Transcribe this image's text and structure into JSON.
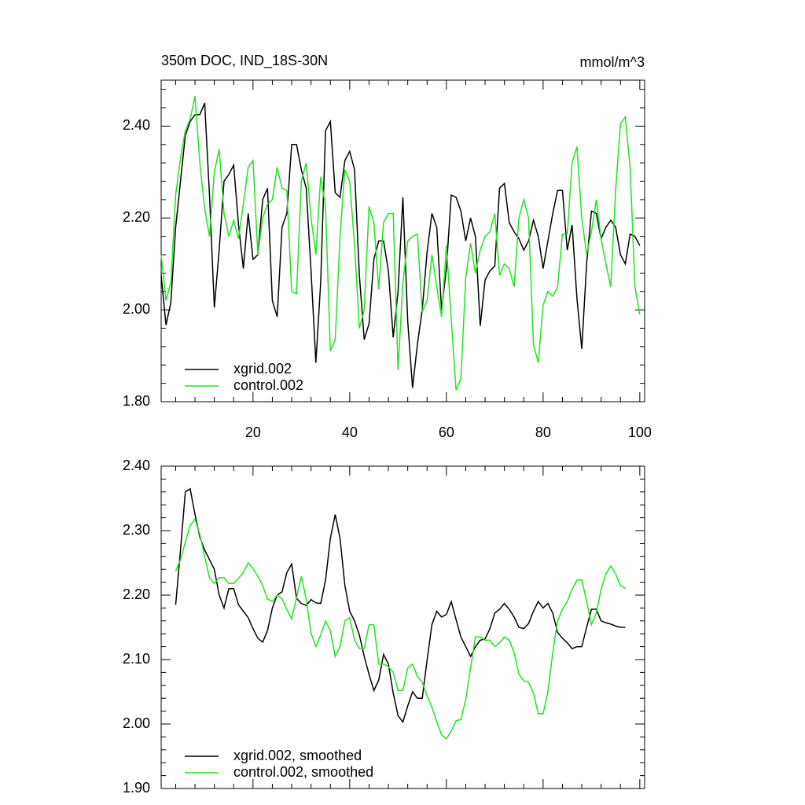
{
  "chart_data": [
    {
      "type": "line",
      "title": "350m DOC, IND_18S-30N",
      "units": "mmol/m^3",
      "x": [
        1,
        2,
        3,
        4,
        5,
        6,
        7,
        8,
        9,
        10,
        11,
        12,
        13,
        14,
        15,
        16,
        17,
        18,
        19,
        20,
        21,
        22,
        23,
        24,
        25,
        26,
        27,
        28,
        29,
        30,
        31,
        32,
        33,
        34,
        35,
        36,
        37,
        38,
        39,
        40,
        41,
        42,
        43,
        44,
        45,
        46,
        47,
        48,
        49,
        50,
        51,
        52,
        53,
        54,
        55,
        56,
        57,
        58,
        59,
        60,
        61,
        62,
        63,
        64,
        65,
        66,
        67,
        68,
        69,
        70,
        71,
        72,
        73,
        74,
        75,
        76,
        77,
        78,
        79,
        80,
        81,
        82,
        83,
        84,
        85,
        86,
        87,
        88,
        89,
        90,
        91,
        92,
        93,
        94,
        95,
        96,
        97,
        98,
        99,
        100
      ],
      "series": [
        {
          "name": "xgrid.002",
          "color": "#000000",
          "values": [
            2.075,
            1.967,
            2.015,
            2.18,
            2.28,
            2.38,
            2.41,
            2.425,
            2.425,
            2.45,
            2.25,
            2.005,
            2.13,
            2.28,
            2.295,
            2.315,
            2.185,
            2.09,
            2.21,
            2.11,
            2.12,
            2.24,
            2.265,
            2.02,
            1.985,
            2.18,
            2.21,
            2.36,
            2.36,
            2.305,
            2.265,
            2.085,
            1.885,
            2.06,
            2.39,
            2.41,
            2.255,
            2.245,
            2.325,
            2.345,
            2.305,
            2.075,
            1.935,
            1.97,
            2.11,
            2.15,
            2.15,
            2.085,
            1.94,
            2.04,
            2.245,
            1.975,
            1.83,
            1.925,
            2.0,
            2.125,
            2.21,
            2.18,
            2.0,
            2.09,
            2.25,
            2.245,
            2.215,
            2.15,
            2.2,
            2.16,
            1.965,
            2.065,
            2.085,
            2.095,
            2.265,
            2.275,
            2.19,
            2.17,
            2.155,
            2.13,
            2.15,
            2.195,
            2.16,
            2.09,
            2.15,
            2.21,
            2.26,
            2.26,
            2.13,
            2.185,
            2.025,
            1.915,
            2.1,
            2.215,
            2.21,
            2.155,
            2.18,
            2.195,
            2.18,
            2.12,
            2.1,
            2.165,
            2.16,
            2.14
          ]
        },
        {
          "name": "control.002",
          "color": "#1ee61e",
          "values": [
            2.12,
            2.02,
            2.06,
            2.25,
            2.33,
            2.39,
            2.415,
            2.465,
            2.32,
            2.22,
            2.16,
            2.3,
            2.35,
            2.21,
            2.16,
            2.195,
            2.155,
            2.23,
            2.31,
            2.325,
            2.12,
            2.2,
            2.23,
            2.24,
            2.31,
            2.265,
            2.26,
            2.04,
            2.035,
            2.28,
            2.32,
            2.2,
            2.12,
            2.29,
            2.225,
            1.91,
            1.935,
            2.16,
            2.305,
            2.28,
            2.14,
            1.96,
            2.0,
            2.225,
            2.19,
            2.045,
            2.19,
            2.21,
            2.21,
            1.87,
            2.06,
            2.15,
            2.16,
            2.165,
            1.995,
            2.02,
            2.12,
            2.05,
            1.985,
            2.14,
            1.98,
            1.825,
            1.85,
            2.07,
            2.145,
            2.08,
            2.13,
            2.16,
            2.17,
            2.21,
            2.075,
            2.1,
            2.09,
            2.05,
            2.2,
            2.24,
            2.2,
            1.925,
            1.885,
            2.01,
            2.04,
            2.03,
            2.05,
            2.165,
            2.165,
            2.32,
            2.355,
            2.2,
            2.12,
            2.17,
            2.24,
            2.155,
            2.1,
            2.05,
            2.26,
            2.405,
            2.42,
            2.31,
            2.05,
            1.99
          ]
        }
      ],
      "xlim": [
        1,
        101
      ],
      "xticks": [
        20,
        40,
        60,
        80,
        100
      ],
      "ylim": [
        1.8,
        2.5
      ],
      "yticks": [
        {
          "value": 1.8,
          "label": "1.80"
        },
        {
          "value": 2,
          "label": "2.00"
        },
        {
          "value": 2.2,
          "label": "2.20"
        },
        {
          "value": 2.4,
          "label": "2.40"
        }
      ],
      "legend": "lower left"
    },
    {
      "type": "line",
      "x": [
        4,
        5,
        6,
        7,
        8,
        9,
        10,
        11,
        12,
        13,
        14,
        15,
        16,
        17,
        18,
        19,
        20,
        21,
        22,
        23,
        24,
        25,
        26,
        27,
        28,
        29,
        30,
        31,
        32,
        33,
        34,
        35,
        36,
        37,
        38,
        39,
        40,
        41,
        42,
        43,
        44,
        45,
        46,
        47,
        48,
        49,
        50,
        51,
        52,
        53,
        54,
        55,
        56,
        57,
        58,
        59,
        60,
        61,
        62,
        63,
        64,
        65,
        66,
        67,
        68,
        69,
        70,
        71,
        72,
        73,
        74,
        75,
        76,
        77,
        78,
        79,
        80,
        81,
        82,
        83,
        84,
        85,
        86,
        87,
        88,
        89,
        90,
        91,
        92,
        93,
        94,
        95,
        96,
        97
      ],
      "series": [
        {
          "name": "xgrid.002, smoothed",
          "color": "#000000",
          "values": [
            2.185,
            2.27,
            2.36,
            2.365,
            2.325,
            2.29,
            2.27,
            2.255,
            2.24,
            2.2,
            2.18,
            2.21,
            2.21,
            2.185,
            2.175,
            2.165,
            2.148,
            2.133,
            2.127,
            2.145,
            2.18,
            2.2,
            2.205,
            2.235,
            2.248,
            2.195,
            2.187,
            2.184,
            2.193,
            2.188,
            2.187,
            2.223,
            2.288,
            2.325,
            2.288,
            2.215,
            2.175,
            2.16,
            2.138,
            2.105,
            2.077,
            2.052,
            2.068,
            2.108,
            2.093,
            2.048,
            2.013,
            2.003,
            2.028,
            2.05,
            2.04,
            2.04,
            2.099,
            2.154,
            2.175,
            2.166,
            2.17,
            2.19,
            2.162,
            2.135,
            2.12,
            2.105,
            2.12,
            2.13,
            2.132,
            2.148,
            2.172,
            2.178,
            2.187,
            2.178,
            2.166,
            2.15,
            2.148,
            2.156,
            2.175,
            2.19,
            2.18,
            2.187,
            2.172,
            2.142,
            2.133,
            2.126,
            2.117,
            2.12,
            2.12,
            2.15,
            2.178,
            2.178,
            2.16,
            2.157,
            2.155,
            2.152,
            2.15,
            2.15
          ]
        },
        {
          "name": "control.002, smoothed",
          "color": "#1ee61e",
          "values": [
            2.237,
            2.255,
            2.282,
            2.308,
            2.318,
            2.294,
            2.26,
            2.227,
            2.218,
            2.227,
            2.227,
            2.218,
            2.218,
            2.226,
            2.235,
            2.25,
            2.241,
            2.229,
            2.215,
            2.194,
            2.19,
            2.2,
            2.194,
            2.178,
            2.163,
            2.196,
            2.229,
            2.194,
            2.141,
            2.12,
            2.138,
            2.16,
            2.145,
            2.105,
            2.12,
            2.16,
            2.165,
            2.13,
            2.117,
            2.117,
            2.154,
            2.154,
            2.093,
            2.093,
            2.089,
            2.08,
            2.052,
            2.052,
            2.087,
            2.093,
            2.074,
            2.065,
            2.044,
            2.026,
            2.004,
            1.983,
            1.977,
            1.989,
            2.005,
            2.007,
            2.038,
            2.087,
            2.135,
            2.135,
            2.13,
            2.13,
            2.12,
            2.126,
            2.135,
            2.13,
            2.111,
            2.077,
            2.067,
            2.065,
            2.048,
            2.016,
            2.016,
            2.05,
            2.111,
            2.16,
            2.178,
            2.19,
            2.209,
            2.223,
            2.224,
            2.19,
            2.154,
            2.172,
            2.209,
            2.233,
            2.245,
            2.233,
            2.215,
            2.21
          ]
        }
      ],
      "xlim": [
        1,
        101
      ],
      "xticks": [
        20,
        40,
        60,
        80,
        100
      ],
      "ylim": [
        1.9,
        2.4
      ],
      "yticks": [
        {
          "value": 1.9,
          "label": "1.90"
        },
        {
          "value": 2,
          "label": "2.00"
        },
        {
          "value": 2.1,
          "label": "2.10"
        },
        {
          "value": 2.2,
          "label": "2.20"
        },
        {
          "value": 2.3,
          "label": "2.30"
        },
        {
          "value": 2.4,
          "label": "2.40"
        }
      ],
      "legend": "lower left"
    }
  ]
}
